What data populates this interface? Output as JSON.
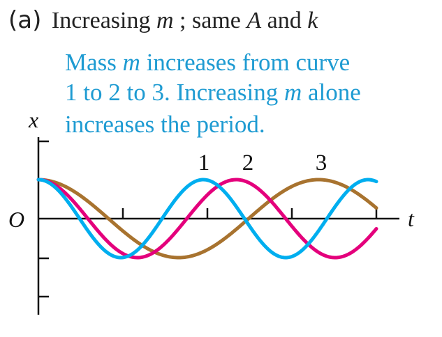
{
  "title": {
    "label": "(a)",
    "text_before_m": "Increasing ",
    "m": "m",
    "text_mid": "; same ",
    "A": "A",
    "and": " and ",
    "k": "k"
  },
  "annotation": {
    "line1_a": "Mass ",
    "line1_m": "m",
    "line1_b": " increases from curve",
    "line2_a": "1 to 2 to 3. Increasing ",
    "line2_m": "m",
    "line2_b": " alone",
    "line3": "increases the period.",
    "color": "#1e9bd2"
  },
  "axes": {
    "y_label": "x",
    "origin_label": "O",
    "x_label": "t"
  },
  "curve_labels": [
    "1",
    "2",
    "3"
  ],
  "chart_data": {
    "type": "line",
    "xlim": [
      0,
      4.1
    ],
    "ylim": [
      -1.6,
      1.6
    ],
    "series": [
      {
        "label": "1",
        "period": 2.0,
        "amplitude": 1,
        "color": "#00aeef"
      },
      {
        "label": "2",
        "period": 2.4,
        "amplitude": 1,
        "color": "#e4007c"
      },
      {
        "label": "3",
        "period": 3.4,
        "amplitude": 1,
        "color": "#a8732f"
      }
    ]
  }
}
